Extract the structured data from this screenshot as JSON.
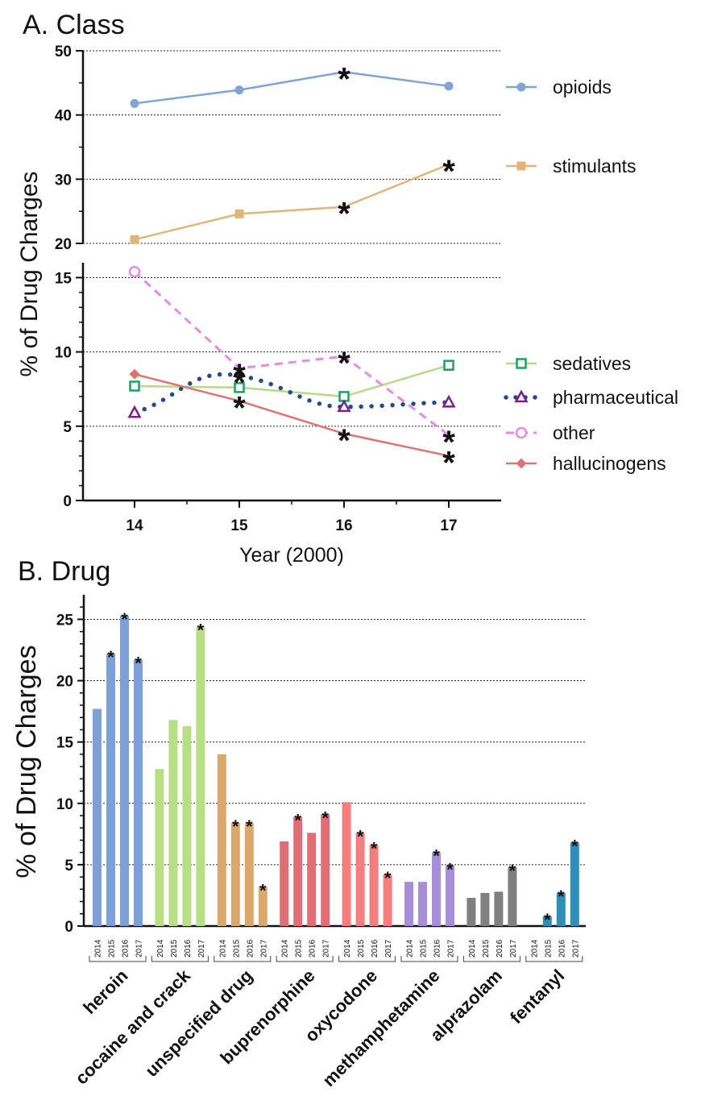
{
  "chart_data": [
    {
      "type": "line",
      "title": "A.  Class",
      "xlabel": "Year (2000)",
      "ylabel": "% of Drug Charges",
      "x": [
        14,
        15,
        16,
        17
      ],
      "xticks": [
        "14",
        "15",
        "16",
        "17"
      ],
      "ylim_upper": [
        20,
        50
      ],
      "ylim_lower": [
        0,
        16
      ],
      "yticks_upper": [
        "20",
        "30",
        "40",
        "50"
      ],
      "yticks_lower": [
        "0",
        "5",
        "10",
        "15"
      ],
      "grid": "horizontal dotted",
      "legend_placement": "right",
      "significance_marker": "*",
      "series": [
        {
          "name": "opioids",
          "values": [
            41.8,
            43.9,
            46.7,
            44.5
          ],
          "color": "#7ea4d8",
          "marker": "circle",
          "dash": "solid",
          "starred": [
            false,
            false,
            true,
            false
          ],
          "panel": "upper"
        },
        {
          "name": "stimulants",
          "values": [
            20.6,
            24.6,
            25.7,
            32.3
          ],
          "color": "#e0b57a",
          "marker": "square",
          "dash": "solid",
          "starred": [
            false,
            false,
            true,
            true
          ],
          "panel": "upper"
        },
        {
          "name": "sedatives",
          "values": [
            7.7,
            7.6,
            7.0,
            9.1
          ],
          "color": "#b6d98a",
          "marker": "open-square",
          "marker_color": "#1aa260",
          "dash": "solid",
          "starred": [
            false,
            false,
            false,
            false
          ],
          "panel": "lower"
        },
        {
          "name": "pharmaceutical",
          "values": [
            5.9,
            8.4,
            6.3,
            6.6
          ],
          "color": "#234a8e",
          "marker": "open-triangle",
          "marker_color": "#7a1f8c",
          "dash": "dotted",
          "starred": [
            false,
            true,
            false,
            false
          ],
          "panel": "lower"
        },
        {
          "name": "other",
          "values": [
            15.4,
            8.9,
            9.7,
            4.4
          ],
          "color": "#e38ce3",
          "marker": "open-circle",
          "dash": "dashed",
          "starred": [
            false,
            true,
            true,
            true
          ],
          "panel": "lower"
        },
        {
          "name": "hallucinogens",
          "values": [
            8.5,
            6.7,
            4.5,
            3.0
          ],
          "color": "#e07272",
          "marker": "diamond",
          "dash": "solid",
          "starred": [
            false,
            true,
            true,
            true
          ],
          "panel": "lower"
        }
      ]
    },
    {
      "type": "bar",
      "title": "B. Drug",
      "ylabel": "% of Drug Charges",
      "ylim": [
        0,
        27
      ],
      "yticks": [
        "0",
        "5",
        "10",
        "15",
        "20",
        "25"
      ],
      "grid": "horizontal dotted",
      "years": [
        "2014",
        "2015",
        "2016",
        "2017"
      ],
      "significance_marker": "*",
      "groups": [
        {
          "name": "heroin",
          "values": [
            17.7,
            22.2,
            25.3,
            21.7
          ],
          "starred": [
            false,
            true,
            true,
            true
          ],
          "color": "#7ea0d8"
        },
        {
          "name": "cocaine and crack",
          "values": [
            12.8,
            16.8,
            16.3,
            24.4
          ],
          "starred": [
            false,
            false,
            false,
            true
          ],
          "color": "#b8de86"
        },
        {
          "name": "unspecified drug",
          "values": [
            14.0,
            8.4,
            8.4,
            3.2
          ],
          "starred": [
            false,
            true,
            true,
            true
          ],
          "color": "#dba86c"
        },
        {
          "name": "buprenorphine",
          "values": [
            6.9,
            8.9,
            7.6,
            9.1
          ],
          "starred": [
            false,
            true,
            false,
            true
          ],
          "color": "#df6f74"
        },
        {
          "name": "oxycodone",
          "values": [
            10.1,
            7.6,
            6.6,
            4.2
          ],
          "starred": [
            false,
            true,
            true,
            true
          ],
          "color": "#f57d7d"
        },
        {
          "name": "methamphetamine",
          "values": [
            3.6,
            3.6,
            6.0,
            4.9
          ],
          "starred": [
            false,
            false,
            true,
            true
          ],
          "color": "#a68ed8"
        },
        {
          "name": "alprazolam",
          "values": [
            2.3,
            2.7,
            2.8,
            4.8
          ],
          "starred": [
            false,
            false,
            false,
            true
          ],
          "color": "#808080"
        },
        {
          "name": "fentanyl",
          "values": [
            0.0,
            0.8,
            2.7,
            6.8
          ],
          "starred": [
            false,
            true,
            true,
            true
          ],
          "color": "#2f8fb8"
        }
      ]
    }
  ]
}
